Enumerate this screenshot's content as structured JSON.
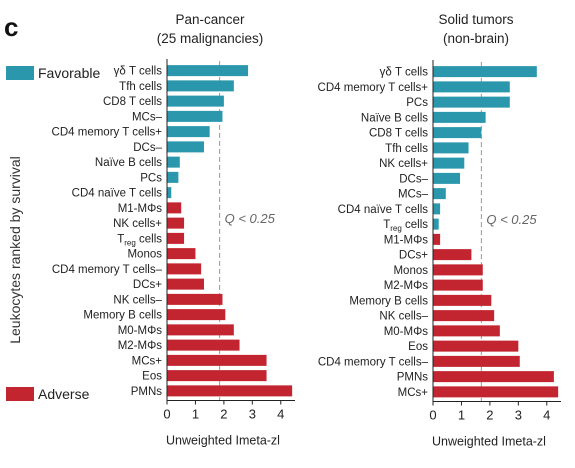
{
  "panel_letter": "c",
  "y_axis_title": "Leukocytes ranked by survival",
  "legend": {
    "favorable": {
      "label": "Favorable",
      "color": "#2a97ad"
    },
    "adverse": {
      "label": "Adverse",
      "color": "#c2252f"
    }
  },
  "chart_data": [
    {
      "type": "bar",
      "orientation": "horizontal",
      "title_line1": "Pan-cancer",
      "title_line2": "(25 malignancies)",
      "xlabel": "Unweighted Imeta-zl",
      "xlim": [
        0,
        4.5
      ],
      "xticks": [
        "0",
        "1",
        "2",
        "3",
        "4"
      ],
      "threshold": {
        "x": 1.85,
        "label": "Q < 0.25"
      },
      "categories": [
        "γδ T cells",
        "Tfh cells",
        "CD8 T cells",
        "MCs–",
        "CD4 memory T cells+",
        "DCs–",
        "Naïve B cells",
        "PCs",
        "CD4 naïve T cells",
        "M1-MΦs",
        "NK cells+",
        "Treg cells",
        "Monos",
        "CD4 memory T cells–",
        "DCs+",
        "NK cells–",
        "Memory B cells",
        "M0-MΦs",
        "M2-MΦs",
        "MCs+",
        "Eos",
        "PMNs"
      ],
      "values": [
        2.85,
        2.35,
        2.0,
        1.95,
        1.5,
        1.3,
        0.45,
        0.4,
        0.15,
        0.5,
        0.6,
        0.6,
        1.0,
        1.2,
        1.3,
        1.95,
        2.05,
        2.35,
        2.55,
        3.5,
        3.5,
        4.4
      ],
      "outcome": [
        "favorable",
        "favorable",
        "favorable",
        "favorable",
        "favorable",
        "favorable",
        "favorable",
        "favorable",
        "favorable",
        "adverse",
        "adverse",
        "adverse",
        "adverse",
        "adverse",
        "adverse",
        "adverse",
        "adverse",
        "adverse",
        "adverse",
        "adverse",
        "adverse",
        "adverse"
      ]
    },
    {
      "type": "bar",
      "orientation": "horizontal",
      "title_line1": "Solid tumors",
      "title_line2": "(non-brain)",
      "xlabel": "Unweighted Imeta-zl",
      "xlim": [
        0,
        4.5
      ],
      "xticks": [
        "0",
        "1",
        "2",
        "3",
        "4"
      ],
      "threshold": {
        "x": 1.7,
        "label": "Q < 0.25"
      },
      "categories": [
        "γδ T cells",
        "CD4 memory T cells+",
        "PCs",
        "Naïve B cells",
        "CD8 T cells",
        "Tfh cells",
        "NK cells+",
        "DCs–",
        "MCs–",
        "CD4 naïve T cells",
        "Treg cells",
        "M1-MΦs",
        "DCs+",
        "Monos",
        "M2-MΦs",
        "Memory B cells",
        "NK cells–",
        "M0-MΦs",
        "Eos",
        "CD4 memory T cells–",
        "PMNs",
        "MCs+"
      ],
      "values": [
        3.65,
        2.7,
        2.7,
        1.85,
        1.7,
        1.25,
        1.1,
        0.95,
        0.45,
        0.25,
        0.2,
        0.25,
        1.35,
        1.75,
        1.75,
        2.05,
        2.15,
        2.35,
        3.0,
        3.05,
        4.25,
        4.4
      ],
      "outcome": [
        "favorable",
        "favorable",
        "favorable",
        "favorable",
        "favorable",
        "favorable",
        "favorable",
        "favorable",
        "favorable",
        "favorable",
        "favorable",
        "adverse",
        "adverse",
        "adverse",
        "adverse",
        "adverse",
        "adverse",
        "adverse",
        "adverse",
        "adverse",
        "adverse",
        "adverse"
      ]
    }
  ]
}
